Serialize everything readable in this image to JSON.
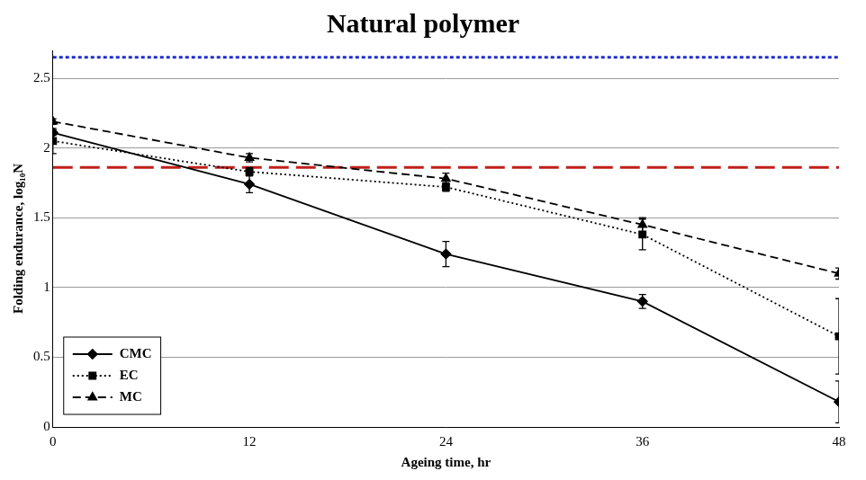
{
  "chart_data": {
    "type": "line",
    "title": "Natural polymer",
    "x_label": "Ageing time, hr",
    "y_label": "Folding endurance, log₁₀N",
    "x": [
      0,
      12,
      24,
      36,
      48
    ],
    "xlim": [
      0,
      48
    ],
    "xticks": [
      0,
      12,
      24,
      36,
      48
    ],
    "ylim": [
      0,
      2.7
    ],
    "yticks": [
      0,
      0.5,
      1,
      1.5,
      2,
      2.5
    ],
    "grid": true,
    "legend": "bottom-left",
    "series": [
      {
        "name": "CMC",
        "color": "#000000",
        "marker": "diamond",
        "line_style": "solid",
        "values": [
          2.11,
          1.74,
          1.24,
          0.9,
          0.18
        ],
        "errors": [
          0.02,
          0.06,
          0.09,
          0.05,
          0.15
        ]
      },
      {
        "name": "EC",
        "color": "#000000",
        "marker": "square",
        "line_style": "dotted",
        "values": [
          2.05,
          1.83,
          1.72,
          1.38,
          0.65
        ],
        "errors": [
          0.09,
          0.03,
          0.03,
          0.11,
          0.27
        ]
      },
      {
        "name": "MC",
        "color": "#000000",
        "marker": "triangle",
        "line_style": "dashed",
        "values": [
          2.19,
          1.93,
          1.78,
          1.45,
          1.1
        ],
        "errors": [
          0.02,
          0.03,
          0.04,
          0.05,
          0.04
        ]
      }
    ],
    "reference_lines": [
      {
        "value": 2.65,
        "color": "#1f2fd0",
        "line_style": "dotted"
      },
      {
        "value": 1.86,
        "color": "#c0201a",
        "line_style": "dashed"
      }
    ]
  }
}
